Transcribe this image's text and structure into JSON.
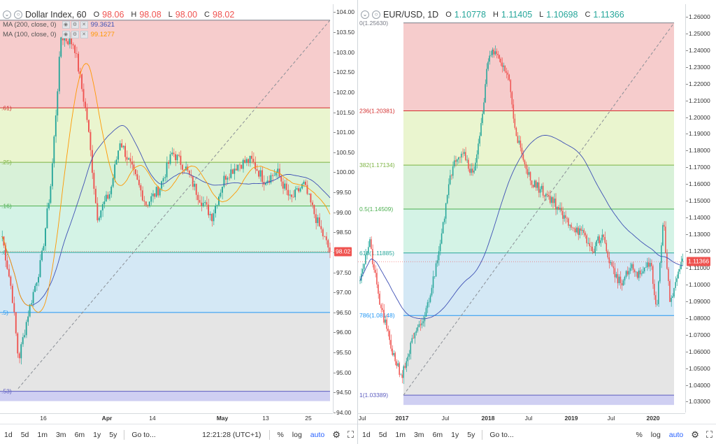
{
  "left": {
    "symbol": "Dollar Index, 60",
    "ohlc": {
      "o_label": "O",
      "o": "98.06",
      "h_label": "H",
      "h": "98.08",
      "l_label": "L",
      "l": "98.00",
      "c_label": "C",
      "c": "98.02"
    },
    "indicators": [
      {
        "label": "MA (200, close, 0)",
        "value": "99.3621",
        "color": "#3f51b5"
      },
      {
        "label": "MA (100, close, 0)",
        "value": "99.1277",
        "color": "#ff9800"
      }
    ],
    "price_axis": [
      "104.00",
      "103.50",
      "103.00",
      "102.50",
      "102.00",
      "101.50",
      "101.00",
      "100.50",
      "100.00",
      "99.50",
      "99.00",
      "98.50",
      "98.00",
      "97.50",
      "97.00",
      "96.50",
      "96.00",
      "95.50",
      "95.00",
      "94.50",
      "94.00"
    ],
    "price_range": [
      94.0,
      104.2
    ],
    "last_price": "98.02",
    "time_axis": [
      {
        "label": "16",
        "x": 62,
        "bold": false
      },
      {
        "label": "Apr",
        "x": 153,
        "bold": true
      },
      {
        "label": "14",
        "x": 218,
        "bold": false
      },
      {
        "label": "May",
        "x": 318,
        "bold": true
      },
      {
        "label": "13",
        "x": 380,
        "bold": false
      },
      {
        "label": "25",
        "x": 441,
        "bold": false
      }
    ],
    "fib_labels": [
      ".61)",
      ".25)",
      ".16)",
      ".0)",
      ".5)",
      ".53)"
    ],
    "bottombar": {
      "ranges": [
        "1d",
        "5d",
        "1m",
        "3m",
        "6m",
        "1y",
        "5y"
      ],
      "goto": "Go to...",
      "time": "12:21:28 (UTC+1)",
      "pct": "%",
      "log": "log",
      "auto": "auto"
    }
  },
  "right": {
    "symbol": "EUR/USD, 1D",
    "ohlc": {
      "o_label": "O",
      "o": "1.10778",
      "h_label": "H",
      "h": "1.11405",
      "l_label": "L",
      "l": "1.10698",
      "c_label": "C",
      "c": "1.11366"
    },
    "price_axis": [
      "1.26000",
      "1.25000",
      "1.24000",
      "1.23000",
      "1.22000",
      "1.21000",
      "1.20000",
      "1.19000",
      "1.18000",
      "1.17000",
      "1.16000",
      "1.15000",
      "1.14000",
      "1.13000",
      "1.12000",
      "1.11000",
      "1.10000",
      "1.09000",
      "1.08000",
      "1.07000",
      "1.06000",
      "1.05000",
      "1.04000",
      "1.03000"
    ],
    "price_range": [
      1.0235,
      1.2675
    ],
    "last_price": "1.11366",
    "time_axis": [
      {
        "label": "Jul",
        "x": 6,
        "bold": false
      },
      {
        "label": "2017",
        "x": 63,
        "bold": true
      },
      {
        "label": "Jul",
        "x": 125,
        "bold": false
      },
      {
        "label": "2018",
        "x": 186,
        "bold": true
      },
      {
        "label": "Jul",
        "x": 244,
        "bold": false
      },
      {
        "label": "2019",
        "x": 305,
        "bold": true
      },
      {
        "label": "Jul",
        "x": 362,
        "bold": false
      },
      {
        "label": "2020",
        "x": 422,
        "bold": true
      }
    ],
    "fib_labels": [
      "0(1.25630)",
      "236(1.20381)",
      "382(1.17134)",
      "0.5(1.14509)",
      "618(1.11885)",
      "786(1.08148)",
      "1(1.03389)"
    ],
    "bottombar": {
      "ranges": [
        "1d",
        "5d",
        "1m",
        "3m",
        "6m",
        "1y",
        "5y"
      ],
      "goto": "Go to...",
      "pct": "%",
      "log": "log",
      "auto": "auto"
    }
  },
  "chart_data": [
    {
      "type": "candlestick",
      "title": "Dollar Index, 60",
      "ylim": [
        94.0,
        104.2
      ],
      "fib_levels": [
        103.8,
        101.61,
        100.25,
        99.16,
        98.0,
        96.5,
        94.53
      ],
      "last": 98.02,
      "series": [
        {
          "name": "MA (200, close, 0)",
          "value": 99.3621
        },
        {
          "name": "MA (100, close, 0)",
          "value": 99.1277
        }
      ]
    },
    {
      "type": "candlestick",
      "title": "EUR/USD, 1D",
      "ylim": [
        1.0235,
        1.2675
      ],
      "fib_levels": [
        1.2563,
        1.20381,
        1.17134,
        1.14509,
        1.11885,
        1.08148,
        1.03389
      ],
      "last": 1.11366
    }
  ],
  "colors": {
    "up": "#26a69a",
    "down": "#ef5350",
    "ma200": "#3f51b5",
    "ma100": "#ff9800"
  },
  "icons": {
    "settings": "gear-icon",
    "fullscreen": "fullscreen-icon",
    "collapse": "chevron-icon"
  }
}
